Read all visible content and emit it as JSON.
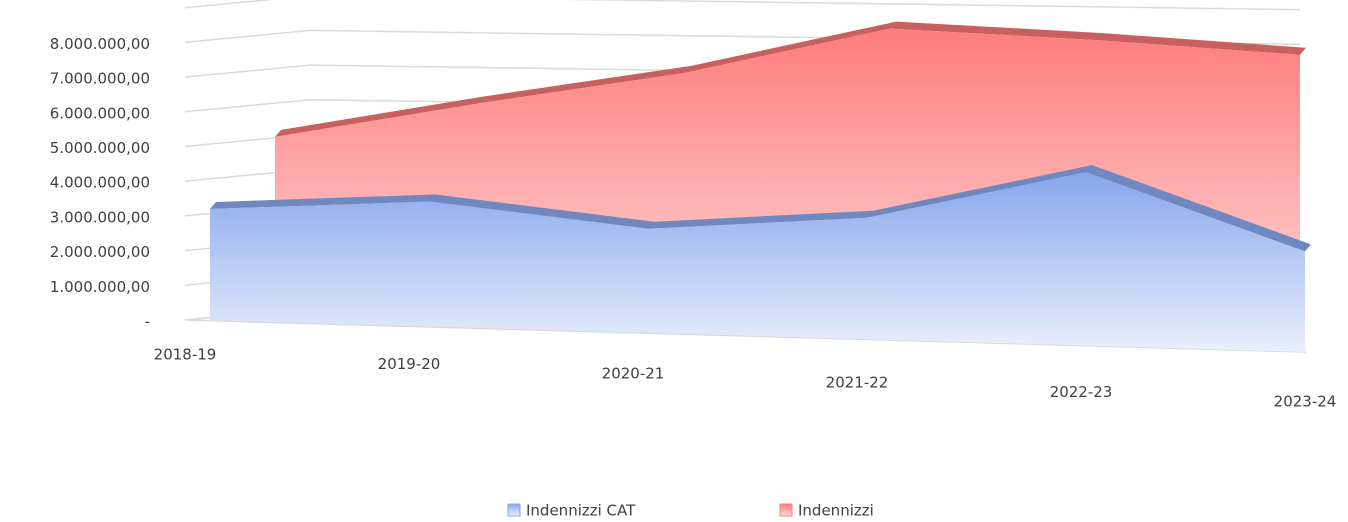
{
  "chart_data": {
    "type": "area3d",
    "categories": [
      "2018-19",
      "2019-20",
      "2020-21",
      "2021-22",
      "2022-23",
      "2023-24"
    ],
    "series": [
      {
        "name": "Indennizzi CAT",
        "color": "#8aa9ee",
        "values": [
          3200000,
          3600000,
          3000000,
          3500000,
          5000000,
          2900000
        ]
      },
      {
        "name": "Indennizzi",
        "color": "#ff8080",
        "values": [
          4700000,
          5800000,
          6800000,
          8200000,
          8000000,
          7700000
        ]
      }
    ],
    "ylim": [
      0,
      9000000
    ],
    "yticks": [
      {
        "value": 0,
        "label": "-"
      },
      {
        "value": 1000000,
        "label": "1.000.000,00"
      },
      {
        "value": 2000000,
        "label": "2.000.000,00"
      },
      {
        "value": 3000000,
        "label": "3.000.000,00"
      },
      {
        "value": 4000000,
        "label": "4.000.000,00"
      },
      {
        "value": 5000000,
        "label": "5.000.000,00"
      },
      {
        "value": 6000000,
        "label": "6.000.000,00"
      },
      {
        "value": 7000000,
        "label": "7.000.000,00"
      },
      {
        "value": 8000000,
        "label": "8.000.000,00"
      }
    ],
    "grid": true,
    "legend": "bottom"
  }
}
